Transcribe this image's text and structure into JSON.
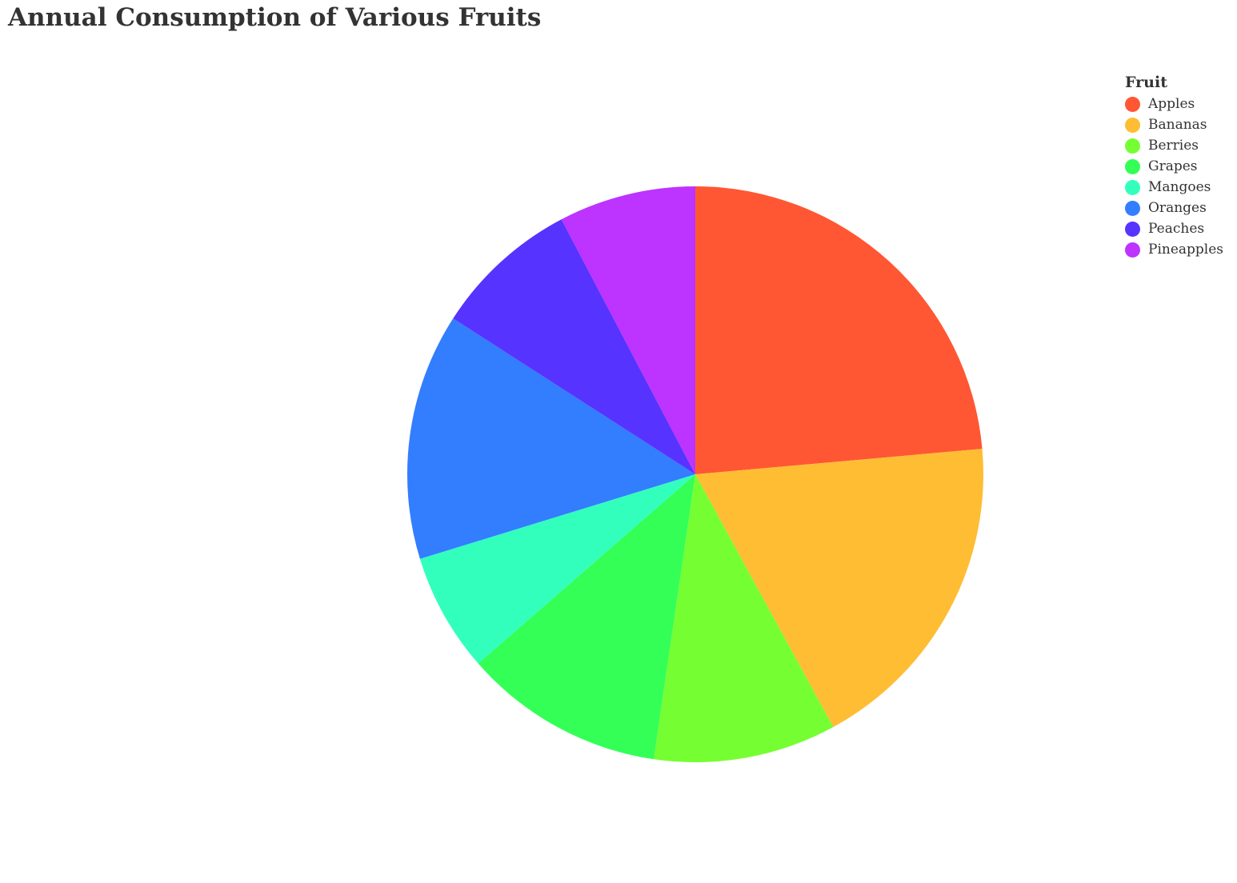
{
  "chart_data": {
    "type": "pie",
    "title": "Annual Consumption of Various Fruits",
    "legend": {
      "title": "Fruit",
      "placement": "top-right"
    },
    "start_angle": "12 o'clock, clockwise",
    "categories": [
      "Apples",
      "Bananas",
      "Berries",
      "Grapes",
      "Mangoes",
      "Oranges",
      "Peaches",
      "Pineapples"
    ],
    "values": [
      23,
      18,
      10,
      11,
      6.5,
      13.5,
      8,
      7.5
    ],
    "colors": [
      "#ff5733",
      "#ffbd33",
      "#75ff33",
      "#33ff57",
      "#33ffbd",
      "#337dff",
      "#5733ff",
      "#bd33ff"
    ]
  }
}
